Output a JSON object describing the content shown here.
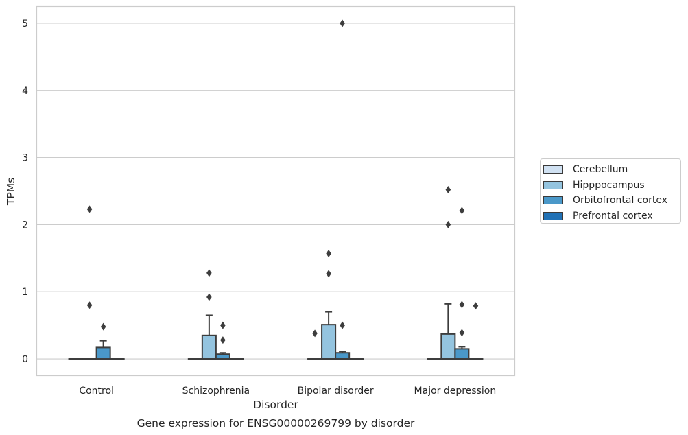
{
  "caption": "Gene expression for ENSG00000269799 by disorder",
  "chart_data": {
    "type": "box",
    "xlabel": "Disorder",
    "ylabel": "TPMs",
    "ylim": [
      -0.25,
      5.25
    ],
    "yticks": [
      0,
      1,
      2,
      3,
      4,
      5
    ],
    "grid": "horizontal",
    "legend_position": "right",
    "categories": [
      "Control",
      "Schizophrenia",
      "Bipolar disorder",
      "Major depression"
    ],
    "series": [
      {
        "name": "Cerebellum",
        "color": "#d0e1f2",
        "boxes": [
          {
            "q1": 0,
            "median": 0,
            "q3": 0,
            "whislo": 0,
            "whishi": 0,
            "fliers": []
          },
          {
            "q1": 0,
            "median": 0,
            "q3": 0,
            "whislo": 0,
            "whishi": 0,
            "fliers": []
          },
          {
            "q1": 0,
            "median": 0,
            "q3": 0,
            "whislo": 0,
            "whishi": 0,
            "fliers": [
              0.38
            ]
          },
          {
            "q1": 0,
            "median": 0,
            "q3": 0,
            "whislo": 0,
            "whishi": 0,
            "fliers": []
          }
        ]
      },
      {
        "name": "Hipppocampus",
        "color": "#94c4df",
        "boxes": [
          {
            "q1": 0,
            "median": 0,
            "q3": 0,
            "whislo": 0,
            "whishi": 0,
            "fliers": [
              0.8,
              2.23
            ]
          },
          {
            "q1": 0,
            "median": 0,
            "q3": 0.35,
            "whislo": 0,
            "whishi": 0.65,
            "fliers": [
              0.92,
              1.28
            ]
          },
          {
            "q1": 0,
            "median": 0,
            "q3": 0.51,
            "whislo": 0,
            "whishi": 0.7,
            "fliers": [
              1.27,
              1.57
            ]
          },
          {
            "q1": 0,
            "median": 0,
            "q3": 0.37,
            "whislo": 0,
            "whishi": 0.82,
            "fliers": [
              2.0,
              2.52
            ]
          }
        ]
      },
      {
        "name": "Orbitofrontal cortex",
        "color": "#4a98c9",
        "boxes": [
          {
            "q1": 0,
            "median": 0,
            "q3": 0.17,
            "whislo": 0,
            "whishi": 0.27,
            "fliers": [
              0.48
            ]
          },
          {
            "q1": 0,
            "median": 0,
            "q3": 0.07,
            "whislo": 0,
            "whishi": 0.09,
            "fliers": [
              0.28,
              0.5
            ]
          },
          {
            "q1": 0,
            "median": 0,
            "q3": 0.09,
            "whislo": 0,
            "whishi": 0.11,
            "fliers": [
              0.5,
              5.0
            ]
          },
          {
            "q1": 0,
            "median": 0,
            "q3": 0.15,
            "whislo": 0,
            "whishi": 0.18,
            "fliers": [
              0.39,
              0.81,
              2.21
            ]
          }
        ]
      },
      {
        "name": "Prefrontal cortex",
        "color": "#2171b5",
        "boxes": [
          {
            "q1": 0,
            "median": 0,
            "q3": 0,
            "whislo": 0,
            "whishi": 0,
            "fliers": []
          },
          {
            "q1": 0,
            "median": 0,
            "q3": 0,
            "whislo": 0,
            "whishi": 0,
            "fliers": []
          },
          {
            "q1": 0,
            "median": 0,
            "q3": 0,
            "whislo": 0,
            "whishi": 0,
            "fliers": []
          },
          {
            "q1": 0,
            "median": 0,
            "q3": 0,
            "whislo": 0,
            "whishi": 0,
            "fliers": [
              0.79
            ]
          }
        ]
      }
    ]
  }
}
